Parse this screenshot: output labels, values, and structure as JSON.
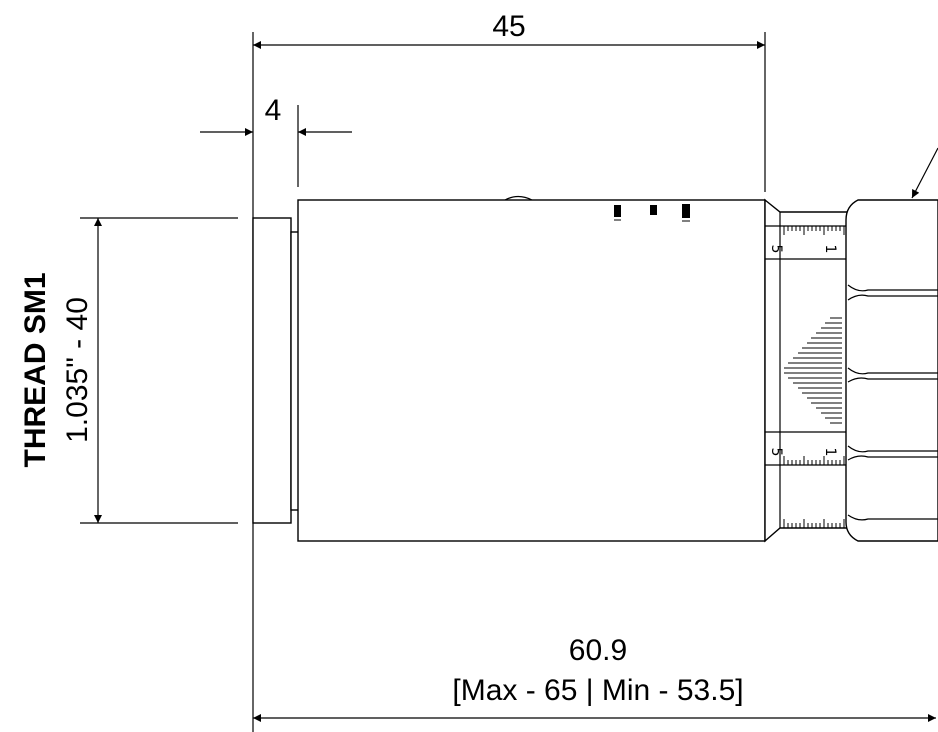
{
  "dimensions": {
    "overall_width": "45",
    "flange_width": "4",
    "total_length": "60.9",
    "length_range": "[Max - 65 | Min - 53.5]"
  },
  "thread": {
    "name": "THREAD SM1",
    "spec": "1.035\" - 40"
  },
  "scale_labels": {
    "upper_five": "5",
    "upper_one": "1",
    "lower_five": "5",
    "lower_one": "1"
  }
}
